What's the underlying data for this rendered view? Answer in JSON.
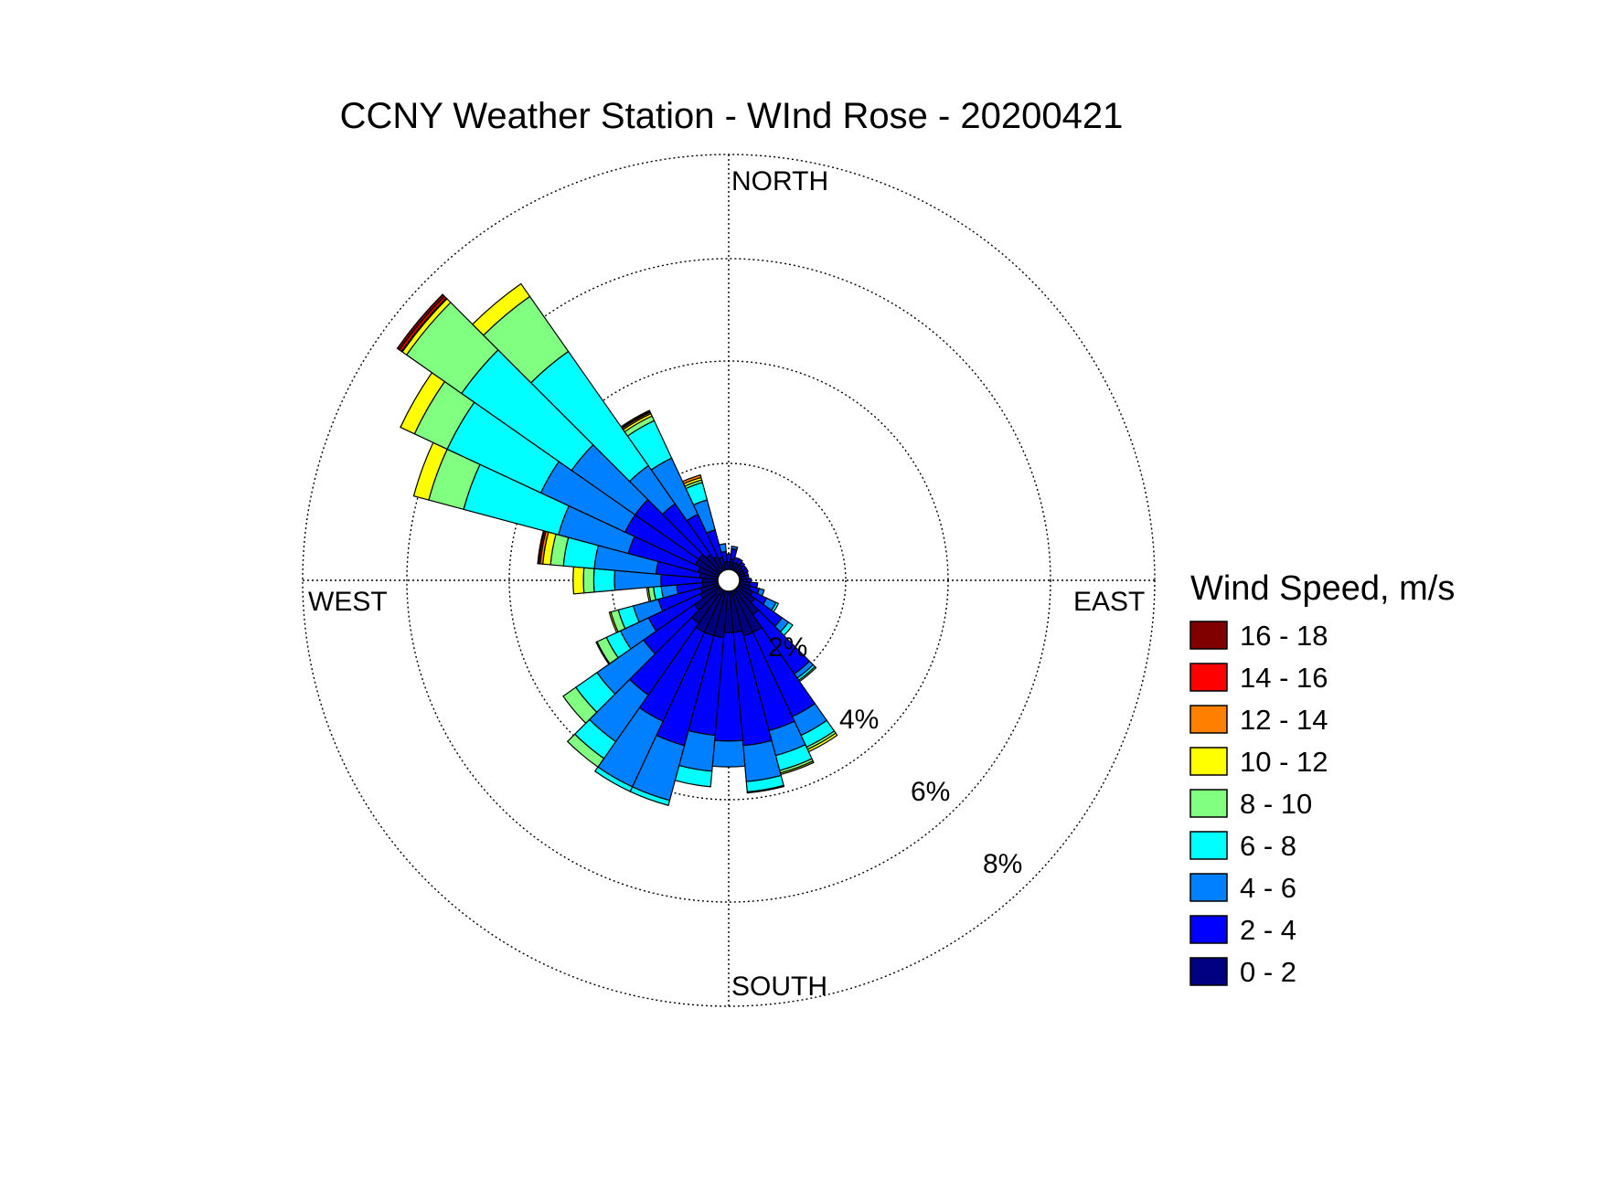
{
  "chart_data": {
    "type": "wind-rose",
    "title": "CCNY Weather Station - WInd Rose - 20200421",
    "direction_labels": {
      "north": "NORTH",
      "east": "EAST",
      "south": "SOUTH",
      "west": "WEST"
    },
    "ring_labels": [
      "2%",
      "4%",
      "6%",
      "8%"
    ],
    "ring_values": [
      2,
      4,
      6,
      8
    ],
    "grid": "dotted",
    "legend": {
      "title": "Wind Speed, m/s",
      "placement": "right",
      "items": [
        {
          "label": "16 - 18",
          "color": "#800000"
        },
        {
          "label": "14 - 16",
          "color": "#ff0000"
        },
        {
          "label": "12 - 14",
          "color": "#ff8000"
        },
        {
          "label": "10 - 12",
          "color": "#ffff00"
        },
        {
          "label": "8 - 10",
          "color": "#80ff80"
        },
        {
          "label": "6 - 8",
          "color": "#00ffff"
        },
        {
          "label": "4 - 6",
          "color": "#0080ff"
        },
        {
          "label": "2 - 4",
          "color": "#0000ff"
        },
        {
          "label": "0 - 2",
          "color": "#000080"
        }
      ]
    },
    "bins": [
      "0 - 2",
      "2 - 4",
      "4 - 6",
      "6 - 8",
      "8 - 10",
      "10 - 12",
      "12 - 14",
      "14 - 16",
      "16 - 18"
    ],
    "colors": [
      "#000080",
      "#0000ff",
      "#0080ff",
      "#00ffff",
      "#80ff80",
      "#ffff00",
      "#ff8000",
      "#ff0000",
      "#800000"
    ],
    "sector_width_deg": 10,
    "sectors": [
      {
        "dir": 0,
        "cum": [
          0.15,
          0.3
        ]
      },
      {
        "dir": 10,
        "cum": [
          0.2,
          0.4,
          0.45
        ]
      },
      {
        "dir": 20,
        "cum": [
          0.15,
          0.25
        ]
      },
      {
        "dir": 30,
        "cum": [
          0.15,
          0.25
        ]
      },
      {
        "dir": 40,
        "cum": [
          0.15,
          0.22
        ]
      },
      {
        "dir": 50,
        "cum": [
          0.12,
          0.2
        ]
      },
      {
        "dir": 60,
        "cum": [
          0.12,
          0.2
        ]
      },
      {
        "dir": 70,
        "cum": [
          0.12,
          0.18
        ]
      },
      {
        "dir": 80,
        "cum": [
          0.12,
          0.18
        ]
      },
      {
        "dir": 90,
        "cum": [
          0.15,
          0.22
        ]
      },
      {
        "dir": 100,
        "cum": [
          0.2,
          0.35
        ]
      },
      {
        "dir": 110,
        "cum": [
          0.22,
          0.4,
          0.5
        ]
      },
      {
        "dir": 120,
        "cum": [
          0.3,
          0.6,
          0.8,
          0.85
        ]
      },
      {
        "dir": 130,
        "cum": [
          0.4,
          1.05,
          1.2,
          1.3
        ]
      },
      {
        "dir": 140,
        "cum": [
          0.6,
          2.0,
          2.1,
          2.15,
          2.18
        ]
      },
      {
        "dir": 150,
        "cum": [
          0.9,
          2.7,
          3.1,
          3.35,
          3.4,
          3.45
        ]
      },
      {
        "dir": 160,
        "cum": [
          0.9,
          2.8,
          3.3,
          3.6,
          3.65,
          3.68
        ]
      },
      {
        "dir": 170,
        "cum": [
          0.8,
          3.0,
          3.7,
          3.9,
          3.92
        ]
      },
      {
        "dir": 180,
        "cum": [
          0.8,
          2.9,
          3.4
        ]
      },
      {
        "dir": 190,
        "cum": [
          0.9,
          2.8,
          3.5,
          3.8
        ]
      },
      {
        "dir": 200,
        "cum": [
          0.9,
          3.1,
          4.2,
          4.3
        ]
      },
      {
        "dir": 210,
        "cum": [
          0.9,
          2.8,
          4.2,
          4.3
        ]
      },
      {
        "dir": 220,
        "cum": [
          0.8,
          2.5,
          3.6,
          4.0,
          4.2
        ]
      },
      {
        "dir": 230,
        "cum": [
          0.6,
          1.8,
          2.9,
          3.4,
          3.7
        ]
      },
      {
        "dir": 240,
        "cum": [
          0.4,
          1.5,
          2.1,
          2.4,
          2.6,
          2.62
        ]
      },
      {
        "dir": 250,
        "cum": [
          0.35,
          1.2,
          1.7,
          2.0,
          2.15,
          2.18
        ]
      },
      {
        "dir": 260,
        "cum": [
          0.3,
          0.8,
          1.1,
          1.25,
          1.35,
          1.38
        ]
      },
      {
        "dir": 270,
        "cum": [
          0.3,
          1.1,
          2.0,
          2.4,
          2.6,
          2.8
        ]
      },
      {
        "dir": 280,
        "cum": [
          0.35,
          1.2,
          2.4,
          3.0,
          3.25,
          3.4,
          3.45,
          3.48,
          3.5
        ]
      },
      {
        "dir": 290,
        "cum": [
          0.4,
          1.8,
          3.2,
          5.1,
          5.8,
          6.1
        ]
      },
      {
        "dir": 300,
        "cum": [
          0.5,
          2.0,
          3.8,
          5.8,
          6.5,
          6.8
        ]
      },
      {
        "dir": 310,
        "cum": [
          0.5,
          2.0,
          3.5,
          6.1,
          7.4,
          7.5,
          7.52,
          7.57,
          7.62
        ]
      },
      {
        "dir": 320,
        "cum": [
          0.4,
          1.6,
          2.5,
          5.2,
          6.5,
          6.8
        ]
      },
      {
        "dir": 330,
        "cum": [
          0.3,
          1.2,
          2.4,
          3.2,
          3.3,
          3.35,
          3.38,
          3.4,
          3.42
        ]
      },
      {
        "dir": 340,
        "cum": [
          0.25,
          0.8,
          1.4,
          1.75,
          1.8,
          1.85,
          1.9
        ]
      },
      {
        "dir": 350,
        "cum": [
          0.15,
          0.35,
          0.5
        ]
      }
    ]
  }
}
